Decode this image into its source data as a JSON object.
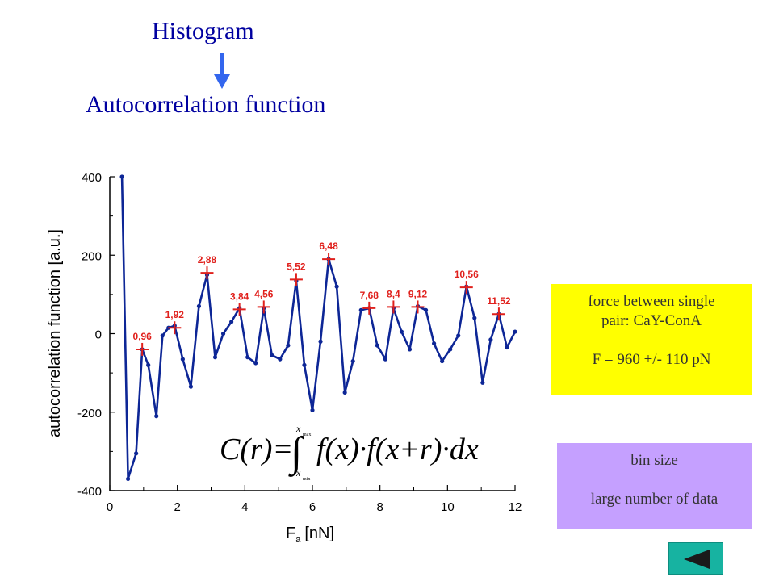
{
  "header": {
    "title_top": "Histogram",
    "title_bottom": "Autocorrelation function"
  },
  "info_boxes": {
    "force_line1": "force between single",
    "force_line2": "pair: CaY-ConA",
    "force_result": "F = 960 +/- 110 pN",
    "bin_line1": "bin size",
    "bin_line2": "large number of data"
  },
  "colors": {
    "line": "#0d2696",
    "marker": "#e0201c",
    "title": "#0000a0",
    "force_box": "#ffff00",
    "bin_box": "#c5a0ff",
    "nav_button": "#17b3a1"
  },
  "icons": {
    "nav_button": "back-triangle-icon",
    "arrow": "down-arrow-icon"
  },
  "formula": "C(r) = ∫ from x_min to x_max f(x)·f(x+r)·dx",
  "chart_data": {
    "type": "line",
    "xlabel": "F",
    "xlabel_sub": "a",
    "xlabel_unit": "[nN]",
    "ylabel": "autocorrelation function [a.u.]",
    "xlim": [
      0,
      12
    ],
    "ylim": [
      -400,
      400
    ],
    "xticks": [
      0,
      2,
      4,
      6,
      8,
      10,
      12
    ],
    "yticks": [
      400,
      200,
      0,
      -200,
      -400
    ],
    "grid": false,
    "series": [
      {
        "x": [
          0.36,
          0.54,
          0.78,
          0.96,
          1.14,
          1.38,
          1.56,
          1.74,
          1.92,
          2.16,
          2.4,
          2.64,
          2.88,
          3.12,
          3.36,
          3.6,
          3.84,
          4.08,
          4.32,
          4.56,
          4.8,
          5.04,
          5.28,
          5.52,
          5.76,
          6.0,
          6.24,
          6.48,
          6.72,
          6.96,
          7.2,
          7.44,
          7.68,
          7.92,
          8.16,
          8.4,
          8.64,
          8.88,
          9.12,
          9.36,
          9.6,
          9.84,
          10.08,
          10.32,
          10.56,
          10.8,
          11.04,
          11.28,
          11.52,
          11.76,
          12.0
        ],
        "y": [
          400,
          -370,
          -305,
          -40,
          -80,
          -210,
          -5,
          15,
          20,
          -65,
          -135,
          70,
          150,
          -60,
          0,
          30,
          65,
          -60,
          -75,
          65,
          -55,
          -65,
          -30,
          135,
          -80,
          -195,
          -20,
          190,
          120,
          -150,
          -70,
          60,
          65,
          -30,
          -65,
          65,
          5,
          -40,
          70,
          60,
          -25,
          -70,
          -40,
          -5,
          120,
          40,
          -125,
          -15,
          50,
          -35,
          5
        ]
      }
    ],
    "peaks": [
      {
        "label": "0,96",
        "x": 0.96,
        "y": -40
      },
      {
        "label": "1,92",
        "x": 1.92,
        "y": 15
      },
      {
        "label": "2,88",
        "x": 2.88,
        "y": 155
      },
      {
        "label": "3,84",
        "x": 3.84,
        "y": 62
      },
      {
        "label": "4,56",
        "x": 4.56,
        "y": 68
      },
      {
        "label": "5,52",
        "x": 5.52,
        "y": 138
      },
      {
        "label": "6,48",
        "x": 6.48,
        "y": 190
      },
      {
        "label": "7,68",
        "x": 7.68,
        "y": 65
      },
      {
        "label": "8,4",
        "x": 8.4,
        "y": 68
      },
      {
        "label": "9,12",
        "x": 9.12,
        "y": 68
      },
      {
        "label": "10,56",
        "x": 10.56,
        "y": 118
      },
      {
        "label": "11,52",
        "x": 11.52,
        "y": 50
      }
    ]
  }
}
